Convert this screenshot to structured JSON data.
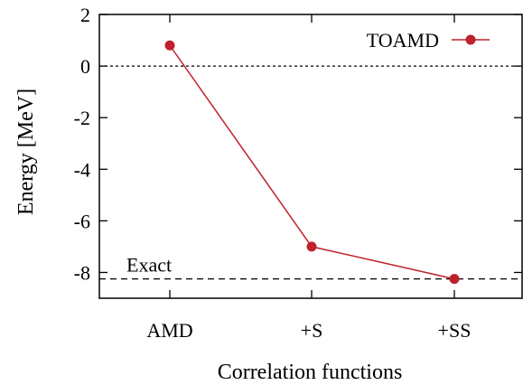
{
  "chart_data": {
    "type": "line",
    "categories": [
      "AMD",
      "+S",
      "+SS"
    ],
    "series": [
      {
        "name": "TOAMD",
        "values": [
          0.8,
          -7.0,
          -8.25
        ],
        "color": "#c0202a"
      }
    ],
    "reference_lines": [
      {
        "y": 0,
        "style": "dotted"
      },
      {
        "y": -8.25,
        "style": "dashed",
        "label": "Exact"
      }
    ],
    "xlabel": "Correlation functions",
    "ylabel": "Energy [MeV]",
    "ylim": [
      -9,
      2
    ],
    "yticks": [
      2,
      0,
      -2,
      -4,
      -6,
      -8
    ],
    "ytick_labels": [
      "2",
      "0",
      "-2",
      "-4",
      "-6",
      "-8"
    ],
    "legend_position": "top-right",
    "grid": false
  }
}
